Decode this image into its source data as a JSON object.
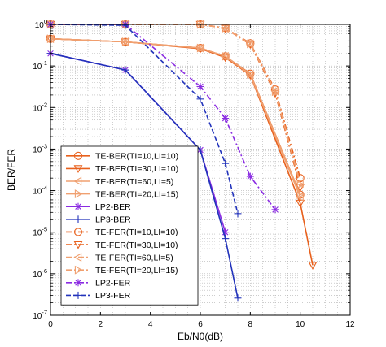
{
  "chart_data": {
    "type": "line",
    "xlabel": "Eb/N0(dB)",
    "ylabel": "BER/FER",
    "xlim": [
      0,
      12
    ],
    "ylim": [
      1e-07,
      1
    ],
    "yscale": "log",
    "grid": true,
    "legend_placement": "lower-left",
    "x_ticks": [
      "0",
      "2",
      "4",
      "6",
      "8",
      "10",
      "12"
    ],
    "y_ticks": [
      {
        "base": "10",
        "exp": "0"
      },
      {
        "base": "10",
        "exp": "-1"
      },
      {
        "base": "10",
        "exp": "-2"
      },
      {
        "base": "10",
        "exp": "-3"
      },
      {
        "base": "10",
        "exp": "-4"
      },
      {
        "base": "10",
        "exp": "-5"
      },
      {
        "base": "10",
        "exp": "-6"
      },
      {
        "base": "10",
        "exp": "-7"
      }
    ],
    "series": [
      {
        "name": "TE-BER(TI=10,LI=10)",
        "color": "#e8601c",
        "dash": "solid",
        "marker": "circle",
        "x": [
          0,
          3,
          6,
          7,
          8,
          10
        ],
        "y": [
          0.45,
          0.38,
          0.27,
          0.17,
          0.065,
          8e-05
        ]
      },
      {
        "name": "TE-BER(TI=30,LI=10)",
        "color": "#e8601c",
        "dash": "solid",
        "marker": "tri-down",
        "x": [
          0,
          3,
          6,
          7,
          8,
          10,
          10.5
        ],
        "y": [
          0.45,
          0.38,
          0.26,
          0.16,
          0.06,
          5e-05,
          1.6e-06
        ]
      },
      {
        "name": "TE-BER(TI=60,LI=5)",
        "color": "#f0a070",
        "dash": "solid",
        "marker": "tri-left",
        "x": [
          0,
          3,
          6,
          7,
          8,
          10
        ],
        "y": [
          0.45,
          0.38,
          0.27,
          0.17,
          0.062,
          7e-05
        ]
      },
      {
        "name": "TE-BER(TI=20,LI=15)",
        "color": "#f0a070",
        "dash": "solid",
        "marker": "tri-right",
        "x": [
          0,
          3,
          6,
          7,
          8,
          10
        ],
        "y": [
          0.45,
          0.38,
          0.27,
          0.17,
          0.063,
          8e-05
        ]
      },
      {
        "name": "LP2-BER",
        "color": "#8a2be2",
        "dash": "solid",
        "marker": "asterisk",
        "x": [
          0,
          3,
          6,
          7
        ],
        "y": [
          0.2,
          0.08,
          0.00095,
          1e-05
        ]
      },
      {
        "name": "LP3-BER",
        "color": "#2233bb",
        "dash": "solid",
        "marker": "plus",
        "x": [
          0,
          3,
          6,
          7,
          7.5
        ],
        "y": [
          0.2,
          0.08,
          0.00095,
          7e-06,
          2.6e-07
        ]
      },
      {
        "name": "TE-FER(TI=10,LI=10)",
        "color": "#e8601c",
        "dash": "dashdot",
        "marker": "circle",
        "x": [
          0,
          3,
          6,
          7,
          8,
          9,
          10
        ],
        "y": [
          1,
          1,
          1,
          0.82,
          0.35,
          0.027,
          0.0002
        ]
      },
      {
        "name": "TE-FER(TI=30,LI=10)",
        "color": "#e8601c",
        "dash": "dashdot",
        "marker": "tri-down",
        "x": [
          0,
          3,
          6,
          7,
          8,
          9,
          10
        ],
        "y": [
          1,
          1,
          1,
          0.8,
          0.33,
          0.022,
          0.00012
        ]
      },
      {
        "name": "TE-FER(TI=60,LI=5)",
        "color": "#f0a070",
        "dash": "dashdot",
        "marker": "tri-left",
        "x": [
          0,
          3,
          6,
          7,
          8,
          9,
          10
        ],
        "y": [
          1,
          1,
          1,
          0.8,
          0.34,
          0.025,
          0.00015
        ]
      },
      {
        "name": "TE-FER(TI=20,LI=15)",
        "color": "#f0a070",
        "dash": "dashdot",
        "marker": "tri-right",
        "x": [
          0,
          3,
          6,
          7,
          8,
          9,
          10
        ],
        "y": [
          1,
          1,
          1,
          0.81,
          0.34,
          0.024,
          0.00014
        ]
      },
      {
        "name": "LP2-FER",
        "color": "#8a2be2",
        "dash": "dashdot",
        "marker": "asterisk",
        "x": [
          0,
          3,
          6,
          7,
          8,
          9
        ],
        "y": [
          1,
          1,
          0.032,
          0.0055,
          0.00022,
          3.5e-05
        ]
      },
      {
        "name": "LP3-FER",
        "color": "#2233bb",
        "dash": "dash",
        "marker": "plus",
        "x": [
          0,
          3,
          6,
          7,
          7.5
        ],
        "y": [
          1,
          0.95,
          0.016,
          0.00045,
          2.8e-05
        ]
      }
    ]
  }
}
